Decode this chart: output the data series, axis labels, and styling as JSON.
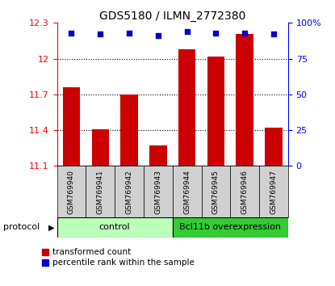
{
  "title": "GDS5180 / ILMN_2772380",
  "samples": [
    "GSM769940",
    "GSM769941",
    "GSM769942",
    "GSM769943",
    "GSM769944",
    "GSM769945",
    "GSM769946",
    "GSM769947"
  ],
  "transformed_count": [
    11.76,
    11.41,
    11.7,
    11.27,
    12.08,
    12.02,
    12.21,
    11.42
  ],
  "percentile_rank": [
    93,
    92,
    93,
    91,
    94,
    93,
    93,
    92
  ],
  "ylim_left": [
    11.1,
    12.3
  ],
  "ylim_right": [
    0,
    100
  ],
  "yticks_left": [
    11.1,
    11.4,
    11.7,
    12.0,
    12.3
  ],
  "yticks_right": [
    0,
    25,
    50,
    75,
    100
  ],
  "ytick_labels_left": [
    "11.1",
    "11.4",
    "11.7",
    "12",
    "12.3"
  ],
  "ytick_labels_right": [
    "0",
    "25",
    "50",
    "75",
    "100%"
  ],
  "bar_color": "#cc0000",
  "dot_color": "#0000cc",
  "control_color": "#bbffbb",
  "overexp_color": "#33cc33",
  "control_label": "control",
  "overexp_label": "Bcl11b overexpression",
  "protocol_label": "protocol",
  "legend_bar_label": "transformed count",
  "legend_dot_label": "percentile rank within the sample",
  "bar_bottom": 11.1
}
